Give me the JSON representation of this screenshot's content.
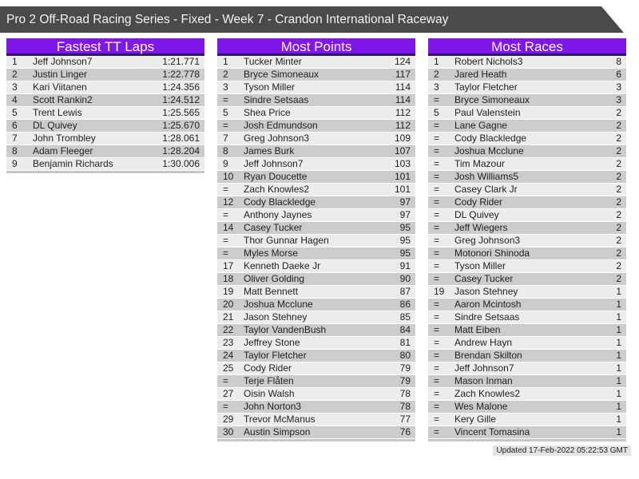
{
  "header": {
    "title": "Pro 2 Off-Road Racing Series - Fixed - Week 7 - Crandon International Raceway"
  },
  "colors": {
    "topbar_bg": "#4a4a4a",
    "topbar_text": "#f2f2f2",
    "accent": "#7e17e8",
    "header_border": "#262626",
    "row_light": "#ececec",
    "row_dark": "#cccccc",
    "table_bottom_border": "#c6c6c6",
    "footer_bg": "#e3e3e3"
  },
  "tables": [
    {
      "title": "Fastest TT Laps",
      "rows": [
        {
          "pos": "1",
          "name": "Jeff Johnson7",
          "value": "1:21.771"
        },
        {
          "pos": "2",
          "name": "Justin Linger",
          "value": "1:22.778"
        },
        {
          "pos": "3",
          "name": "Kari Viitanen",
          "value": "1:24.356"
        },
        {
          "pos": "4",
          "name": "Scott Rankin2",
          "value": "1:24.512"
        },
        {
          "pos": "5",
          "name": "Trent Lewis",
          "value": "1:25.565"
        },
        {
          "pos": "6",
          "name": "DL Quivey",
          "value": "1:25.670"
        },
        {
          "pos": "7",
          "name": "John Trombley",
          "value": "1:28.061"
        },
        {
          "pos": "8",
          "name": "Adam Fleeger",
          "value": "1:28.204"
        },
        {
          "pos": "9",
          "name": "Benjamin Richards",
          "value": "1:30.006"
        }
      ]
    },
    {
      "title": "Most Points",
      "rows": [
        {
          "pos": "1",
          "name": "Tucker Minter",
          "value": "124"
        },
        {
          "pos": "2",
          "name": "Bryce Simoneaux",
          "value": "117"
        },
        {
          "pos": "3",
          "name": "Tyson Miller",
          "value": "114"
        },
        {
          "pos": "=",
          "name": "Sindre Setsaas",
          "value": "114"
        },
        {
          "pos": "5",
          "name": "Shea Price",
          "value": "112"
        },
        {
          "pos": "=",
          "name": "Josh Edmundson",
          "value": "112"
        },
        {
          "pos": "7",
          "name": "Greg Johnson3",
          "value": "109"
        },
        {
          "pos": "8",
          "name": "James Burk",
          "value": "107"
        },
        {
          "pos": "9",
          "name": "Jeff Johnson7",
          "value": "103"
        },
        {
          "pos": "10",
          "name": "Ryan Doucette",
          "value": "101"
        },
        {
          "pos": "=",
          "name": "Zach Knowles2",
          "value": "101"
        },
        {
          "pos": "12",
          "name": "Cody Blackledge",
          "value": "97"
        },
        {
          "pos": "=",
          "name": "Anthony Jaynes",
          "value": "97"
        },
        {
          "pos": "14",
          "name": "Casey Tucker",
          "value": "95"
        },
        {
          "pos": "=",
          "name": "Thor Gunnar Hagen",
          "value": "95"
        },
        {
          "pos": "=",
          "name": "Myles Morse",
          "value": "95"
        },
        {
          "pos": "17",
          "name": "Kenneth Daeke Jr",
          "value": "91"
        },
        {
          "pos": "18",
          "name": "Oliver Golding",
          "value": "90"
        },
        {
          "pos": "19",
          "name": "Matt Bennett",
          "value": "87"
        },
        {
          "pos": "20",
          "name": "Joshua Mcclune",
          "value": "86"
        },
        {
          "pos": "21",
          "name": "Jason Stehney",
          "value": "85"
        },
        {
          "pos": "22",
          "name": "Taylor VandenBush",
          "value": "84"
        },
        {
          "pos": "23",
          "name": "Jeffrey Stone",
          "value": "81"
        },
        {
          "pos": "24",
          "name": "Taylor Fletcher",
          "value": "80"
        },
        {
          "pos": "25",
          "name": "Cody Rider",
          "value": "79"
        },
        {
          "pos": "=",
          "name": "Terje Flåten",
          "value": "79"
        },
        {
          "pos": "27",
          "name": "Oisin Walsh",
          "value": "78"
        },
        {
          "pos": "=",
          "name": "John Norton3",
          "value": "78"
        },
        {
          "pos": "29",
          "name": "Trevor McManus",
          "value": "77"
        },
        {
          "pos": "30",
          "name": "Austin Simpson",
          "value": "76"
        }
      ]
    },
    {
      "title": "Most Races",
      "rows": [
        {
          "pos": "1",
          "name": "Robert Nichols3",
          "value": "8"
        },
        {
          "pos": "2",
          "name": "Jared Heath",
          "value": "6"
        },
        {
          "pos": "3",
          "name": "Taylor Fletcher",
          "value": "3"
        },
        {
          "pos": "=",
          "name": "Bryce Simoneaux",
          "value": "3"
        },
        {
          "pos": "5",
          "name": "Paul Valenstein",
          "value": "2"
        },
        {
          "pos": "=",
          "name": "Lane Gagne",
          "value": "2"
        },
        {
          "pos": "=",
          "name": "Cody Blackledge",
          "value": "2"
        },
        {
          "pos": "=",
          "name": "Joshua Mcclune",
          "value": "2"
        },
        {
          "pos": "=",
          "name": "Tim Mazour",
          "value": "2"
        },
        {
          "pos": "=",
          "name": "Josh Williams5",
          "value": "2"
        },
        {
          "pos": "=",
          "name": "Casey Clark Jr",
          "value": "2"
        },
        {
          "pos": "=",
          "name": "Cody Rider",
          "value": "2"
        },
        {
          "pos": "=",
          "name": "DL Quivey",
          "value": "2"
        },
        {
          "pos": "=",
          "name": "Jeff Wiegers",
          "value": "2"
        },
        {
          "pos": "=",
          "name": "Greg Johnson3",
          "value": "2"
        },
        {
          "pos": "=",
          "name": "Motonori Shinoda",
          "value": "2"
        },
        {
          "pos": "=",
          "name": "Tyson Miller",
          "value": "2"
        },
        {
          "pos": "=",
          "name": "Casey Tucker",
          "value": "2"
        },
        {
          "pos": "19",
          "name": "Jason Stehney",
          "value": "1"
        },
        {
          "pos": "=",
          "name": "Aaron Mcintosh",
          "value": "1"
        },
        {
          "pos": "=",
          "name": "Sindre Setsaas",
          "value": "1"
        },
        {
          "pos": "=",
          "name": "Matt Eiben",
          "value": "1"
        },
        {
          "pos": "=",
          "name": "Andrew Hayn",
          "value": "1"
        },
        {
          "pos": "=",
          "name": "Brendan Skilton",
          "value": "1"
        },
        {
          "pos": "=",
          "name": "Jeff Johnson7",
          "value": "1"
        },
        {
          "pos": "=",
          "name": "Mason Inman",
          "value": "1"
        },
        {
          "pos": "=",
          "name": "Zach Knowles2",
          "value": "1"
        },
        {
          "pos": "=",
          "name": "Wes Malone",
          "value": "1"
        },
        {
          "pos": "=",
          "name": "Kery Gille",
          "value": "1"
        },
        {
          "pos": "=",
          "name": "Vincent Tomasina",
          "value": "1"
        }
      ]
    }
  ],
  "footer": {
    "updated": "Updated 17-Feb-2022 05:22:53 GMT"
  }
}
